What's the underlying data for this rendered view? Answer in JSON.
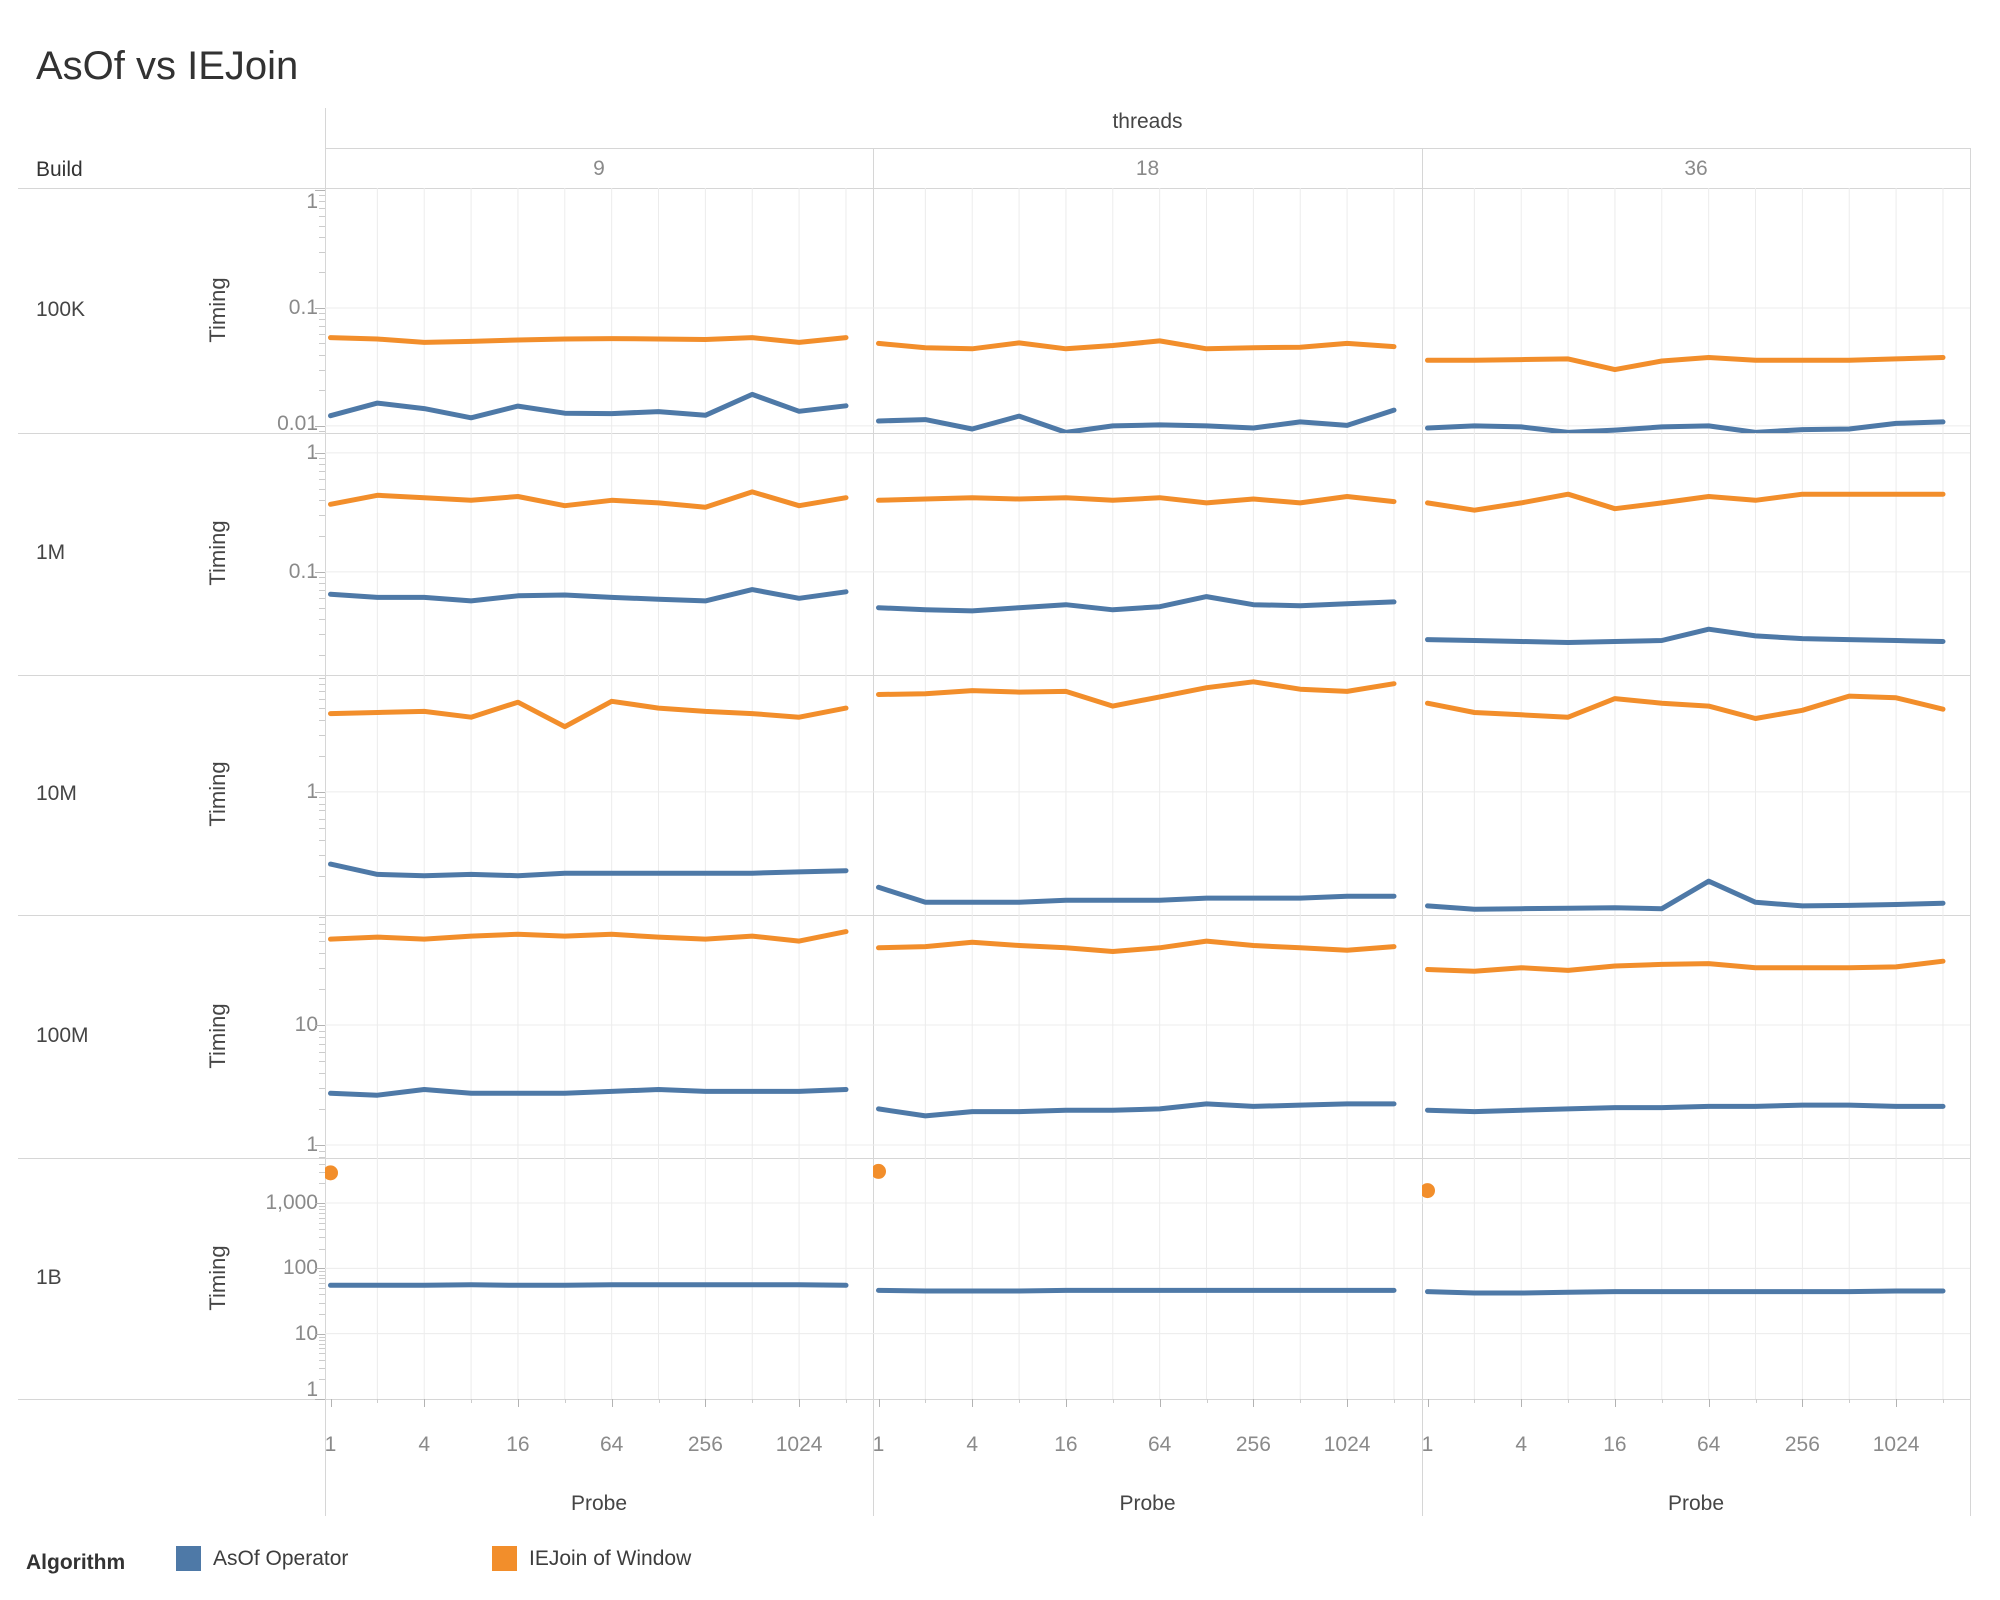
{
  "title": "AsOf vs IEJoin",
  "facet": {
    "col_field": "threads",
    "row_field": "Build",
    "col_values": [
      "9",
      "18",
      "36"
    ],
    "row_values": [
      "100K",
      "1M",
      "10M",
      "100M",
      "1B"
    ]
  },
  "axes": {
    "x_label": "Probe",
    "y_label": "Timing",
    "x_tick_labels": [
      "1",
      "4",
      "16",
      "64",
      "256",
      "1024"
    ]
  },
  "legend": {
    "title": "Algorithm",
    "entries": [
      {
        "label": "AsOf Operator",
        "color": "#4e79a7"
      },
      {
        "label": "IEJoin of Window",
        "color": "#f28e2b"
      }
    ]
  },
  "chart_data": {
    "type": "line",
    "title": "AsOf vs IEJoin",
    "xlabel": "Probe",
    "ylabel": "Timing",
    "x_scale": "log2",
    "y_scale": "log10",
    "grid": true,
    "x": [
      1,
      2,
      4,
      8,
      16,
      32,
      64,
      128,
      256,
      512,
      1024,
      2048
    ],
    "series": [
      "AsOf Operator",
      "IEJoin of Window"
    ],
    "colors": {
      "AsOf Operator": "#4e79a7",
      "IEJoin of Window": "#f28e2b"
    },
    "rows": [
      {
        "build": "100K",
        "ylim": [
          0.0087,
          1.04
        ],
        "yticks": [
          {
            "label": "1",
            "value": 1
          },
          {
            "label": "0.1",
            "value": 0.1
          },
          {
            "label": "0.01",
            "value": 0.01
          }
        ],
        "panels": [
          {
            "threads": "9",
            "values": {
              "AsOf Operator": [
                0.0122,
                0.0156,
                0.014,
                0.0117,
                0.0147,
                0.0128,
                0.0127,
                0.0132,
                0.0123,
                0.0185,
                0.0133,
                0.0148
              ],
              "IEJoin of Window": [
                0.056,
                0.0545,
                0.051,
                0.052,
                0.0535,
                0.0545,
                0.055,
                0.0545,
                0.054,
                0.056,
                0.051,
                0.056
              ]
            }
          },
          {
            "threads": "18",
            "values": {
              "AsOf Operator": [
                0.011,
                0.0113,
                0.0094,
                0.0121,
                0.0088,
                0.01,
                0.0102,
                0.01,
                0.0096,
                0.0108,
                0.0101,
                0.0136
              ],
              "IEJoin of Window": [
                0.05,
                0.046,
                0.045,
                0.0505,
                0.045,
                0.048,
                0.0525,
                0.045,
                0.046,
                0.0465,
                0.05,
                0.047
              ]
            }
          },
          {
            "threads": "36",
            "values": {
              "AsOf Operator": [
                0.0096,
                0.01,
                0.0098,
                0.0088,
                0.0092,
                0.0098,
                0.01,
                0.0088,
                0.0093,
                0.0094,
                0.0105,
                0.0108
              ],
              "IEJoin of Window": [
                0.036,
                0.036,
                0.0365,
                0.037,
                0.03,
                0.0355,
                0.038,
                0.036,
                0.036,
                0.036,
                0.037,
                0.038
              ]
            }
          }
        ]
      },
      {
        "build": "1M",
        "ylim": [
          0.0136,
          1.47
        ],
        "yticks": [
          {
            "label": "1",
            "value": 1
          },
          {
            "label": "0.1",
            "value": 0.1
          }
        ],
        "panels": [
          {
            "threads": "9",
            "values": {
              "AsOf Operator": [
                0.065,
                0.061,
                0.061,
                0.057,
                0.063,
                0.064,
                0.061,
                0.059,
                0.057,
                0.071,
                0.06,
                0.068
              ],
              "IEJoin of Window": [
                0.37,
                0.44,
                0.42,
                0.4,
                0.43,
                0.36,
                0.4,
                0.38,
                0.35,
                0.47,
                0.36,
                0.42
              ]
            }
          },
          {
            "threads": "18",
            "values": {
              "AsOf Operator": [
                0.05,
                0.048,
                0.047,
                0.05,
                0.053,
                0.048,
                0.051,
                0.062,
                0.053,
                0.052,
                0.054,
                0.056
              ],
              "IEJoin of Window": [
                0.4,
                0.41,
                0.42,
                0.41,
                0.42,
                0.4,
                0.42,
                0.38,
                0.41,
                0.38,
                0.43,
                0.39
              ]
            }
          },
          {
            "threads": "36",
            "values": {
              "AsOf Operator": [
                0.027,
                0.0265,
                0.026,
                0.0255,
                0.026,
                0.0265,
                0.033,
                0.029,
                0.0275,
                0.027,
                0.0265,
                0.026
              ],
              "IEJoin of Window": [
                0.38,
                0.33,
                0.38,
                0.45,
                0.34,
                0.38,
                0.43,
                0.4,
                0.45,
                0.45,
                0.45,
                0.45
              ]
            }
          }
        ]
      },
      {
        "build": "10M",
        "ylim": [
          0.094,
          9.45
        ],
        "yticks": [
          {
            "label": "1",
            "value": 1
          }
        ],
        "panels": [
          {
            "threads": "9",
            "values": {
              "AsOf Operator": [
                0.25,
                0.205,
                0.2,
                0.205,
                0.2,
                0.21,
                0.21,
                0.21,
                0.21,
                0.21,
                0.215,
                0.22
              ],
              "IEJoin of Window": [
                4.5,
                4.6,
                4.7,
                4.2,
                5.6,
                3.5,
                5.7,
                5.0,
                4.7,
                4.5,
                4.2,
                5.0
              ]
            }
          },
          {
            "threads": "18",
            "values": {
              "AsOf Operator": [
                0.16,
                0.12,
                0.12,
                0.12,
                0.125,
                0.125,
                0.125,
                0.13,
                0.13,
                0.13,
                0.135,
                0.135
              ],
              "IEJoin of Window": [
                6.5,
                6.6,
                7.0,
                6.8,
                6.9,
                5.2,
                6.2,
                7.4,
                8.3,
                7.2,
                6.9,
                8.0
              ]
            }
          },
          {
            "threads": "36",
            "values": {
              "AsOf Operator": [
                0.112,
                0.105,
                0.106,
                0.107,
                0.108,
                0.106,
                0.18,
                0.12,
                0.112,
                0.113,
                0.115,
                0.118
              ],
              "IEJoin of Window": [
                5.5,
                4.6,
                4.4,
                4.2,
                6.0,
                5.5,
                5.2,
                4.1,
                4.8,
                6.3,
                6.1,
                4.9
              ]
            }
          }
        ]
      },
      {
        "build": "100M",
        "ylim": [
          0.78,
          82.5
        ],
        "yticks": [
          {
            "label": "10",
            "value": 10
          },
          {
            "label": "1",
            "value": 1
          }
        ],
        "panels": [
          {
            "threads": "9",
            "values": {
              "AsOf Operator": [
                2.7,
                2.6,
                2.9,
                2.7,
                2.7,
                2.7,
                2.8,
                2.9,
                2.8,
                2.8,
                2.8,
                2.9
              ],
              "IEJoin of Window": [
                52,
                54,
                52,
                55,
                57,
                55,
                57,
                54,
                52,
                55,
                50,
                60
              ]
            }
          },
          {
            "threads": "18",
            "values": {
              "AsOf Operator": [
                2.0,
                1.75,
                1.9,
                1.9,
                1.95,
                1.95,
                2.0,
                2.2,
                2.1,
                2.15,
                2.2,
                2.2
              ],
              "IEJoin of Window": [
                44,
                45,
                49,
                46,
                44,
                41,
                44,
                50,
                46,
                44,
                42,
                45
              ]
            }
          },
          {
            "threads": "36",
            "values": {
              "AsOf Operator": [
                1.95,
                1.9,
                1.95,
                2.0,
                2.05,
                2.05,
                2.1,
                2.1,
                2.15,
                2.15,
                2.1,
                2.1
              ],
              "IEJoin of Window": [
                29,
                28,
                30,
                28.5,
                31,
                32,
                32.5,
                30,
                30,
                30,
                30.5,
                34
              ]
            }
          }
        ]
      },
      {
        "build": "1B",
        "ylim": [
          1,
          4890
        ],
        "yticks": [
          {
            "label": "1,000",
            "value": 1000
          },
          {
            "label": "100",
            "value": 100
          },
          {
            "label": "10",
            "value": 10
          },
          {
            "label": "1",
            "value": 1
          }
        ],
        "panels": [
          {
            "threads": "9",
            "values": {
              "AsOf Operator": [
                55,
                55,
                55,
                56,
                55,
                55,
                56,
                56,
                56,
                56,
                56,
                55
              ],
              "IEJoin of Window": [
                2900,
                null,
                null,
                null,
                null,
                null,
                null,
                null,
                null,
                null,
                null,
                null
              ]
            }
          },
          {
            "threads": "18",
            "values": {
              "AsOf Operator": [
                46,
                45,
                45,
                45,
                46,
                46,
                46,
                46,
                46,
                46,
                46,
                46
              ],
              "IEJoin of Window": [
                3050,
                null,
                null,
                null,
                null,
                null,
                null,
                null,
                null,
                null,
                null,
                null
              ]
            }
          },
          {
            "threads": "36",
            "values": {
              "AsOf Operator": [
                44,
                42,
                42,
                43,
                44,
                44,
                44,
                44,
                44,
                44,
                45,
                45
              ],
              "IEJoin of Window": [
                1550,
                null,
                null,
                null,
                null,
                null,
                null,
                null,
                null,
                null,
                null,
                null
              ]
            }
          }
        ]
      }
    ]
  }
}
